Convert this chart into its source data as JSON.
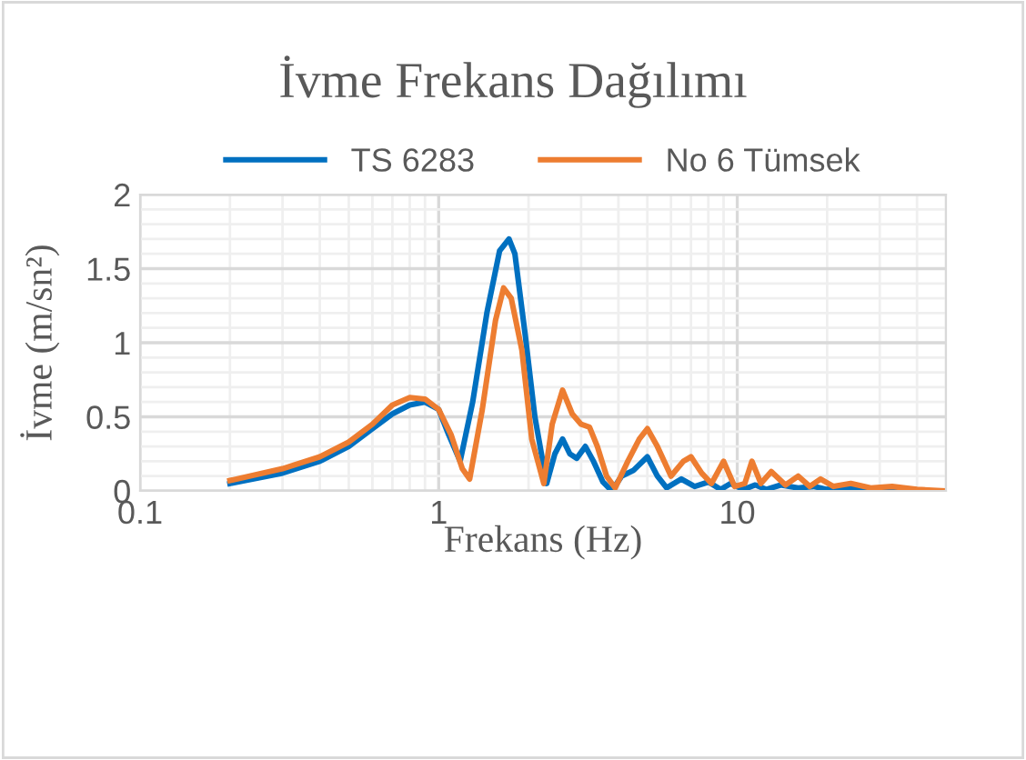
{
  "chart_data": {
    "type": "line",
    "title": "İvme Frekans Dağılımı",
    "xlabel": "Frekans (Hz)",
    "ylabel": "İvme (m/sn²)",
    "log": "x",
    "xlim": [
      0.1,
      50
    ],
    "xticks": [
      0.1,
      1,
      10
    ],
    "ylim": [
      0,
      2
    ],
    "yticks": [
      0,
      0.5,
      1,
      1.5,
      2
    ],
    "grid": true,
    "legend": "top",
    "series": [
      {
        "name": "TS 6283",
        "color": "#0070c0",
        "x": [
          0.2,
          0.3,
          0.4,
          0.5,
          0.6,
          0.7,
          0.8,
          0.9,
          1.0,
          1.08,
          1.18,
          1.3,
          1.45,
          1.6,
          1.72,
          1.8,
          1.95,
          2.1,
          2.3,
          2.45,
          2.6,
          2.75,
          2.9,
          3.1,
          3.3,
          3.55,
          3.8,
          4.1,
          4.5,
          5.0,
          5.4,
          5.8,
          6.5,
          7.2,
          8.0,
          8.8,
          9.5,
          10.5,
          11.5,
          12.5,
          14,
          16,
          18,
          20,
          23,
          26,
          30,
          35
        ],
        "values": [
          0.05,
          0.12,
          0.2,
          0.3,
          0.42,
          0.52,
          0.58,
          0.6,
          0.55,
          0.38,
          0.2,
          0.6,
          1.2,
          1.62,
          1.7,
          1.6,
          1.05,
          0.5,
          0.05,
          0.25,
          0.35,
          0.25,
          0.22,
          0.3,
          0.2,
          0.06,
          0.0,
          0.1,
          0.14,
          0.23,
          0.1,
          0.02,
          0.08,
          0.03,
          0.06,
          0.01,
          0.05,
          0.01,
          0.04,
          0.01,
          0.04,
          0.02,
          0.03,
          0.01,
          0.02,
          0.01,
          0.01,
          0.01
        ]
      },
      {
        "name": "No 6 Tümsek",
        "color": "#ed7d31",
        "x": [
          0.2,
          0.3,
          0.4,
          0.5,
          0.6,
          0.7,
          0.8,
          0.9,
          1.0,
          1.1,
          1.2,
          1.27,
          1.4,
          1.55,
          1.65,
          1.75,
          1.9,
          2.05,
          2.25,
          2.4,
          2.6,
          2.8,
          3.0,
          3.2,
          3.4,
          3.65,
          3.9,
          4.3,
          4.7,
          5.0,
          5.4,
          6.0,
          6.6,
          7.0,
          7.6,
          8.2,
          9.0,
          9.8,
          10.6,
          11.2,
          12,
          13,
          14.5,
          16,
          17.5,
          19,
          21,
          24,
          28,
          33,
          40,
          50
        ],
        "values": [
          0.07,
          0.15,
          0.23,
          0.33,
          0.45,
          0.58,
          0.63,
          0.62,
          0.55,
          0.38,
          0.15,
          0.08,
          0.55,
          1.15,
          1.37,
          1.3,
          0.95,
          0.35,
          0.05,
          0.45,
          0.68,
          0.52,
          0.45,
          0.43,
          0.3,
          0.1,
          0.02,
          0.2,
          0.35,
          0.42,
          0.3,
          0.1,
          0.2,
          0.23,
          0.12,
          0.05,
          0.2,
          0.03,
          0.05,
          0.2,
          0.05,
          0.13,
          0.04,
          0.1,
          0.03,
          0.08,
          0.03,
          0.05,
          0.02,
          0.03,
          0.01,
          0.0
        ]
      }
    ]
  }
}
